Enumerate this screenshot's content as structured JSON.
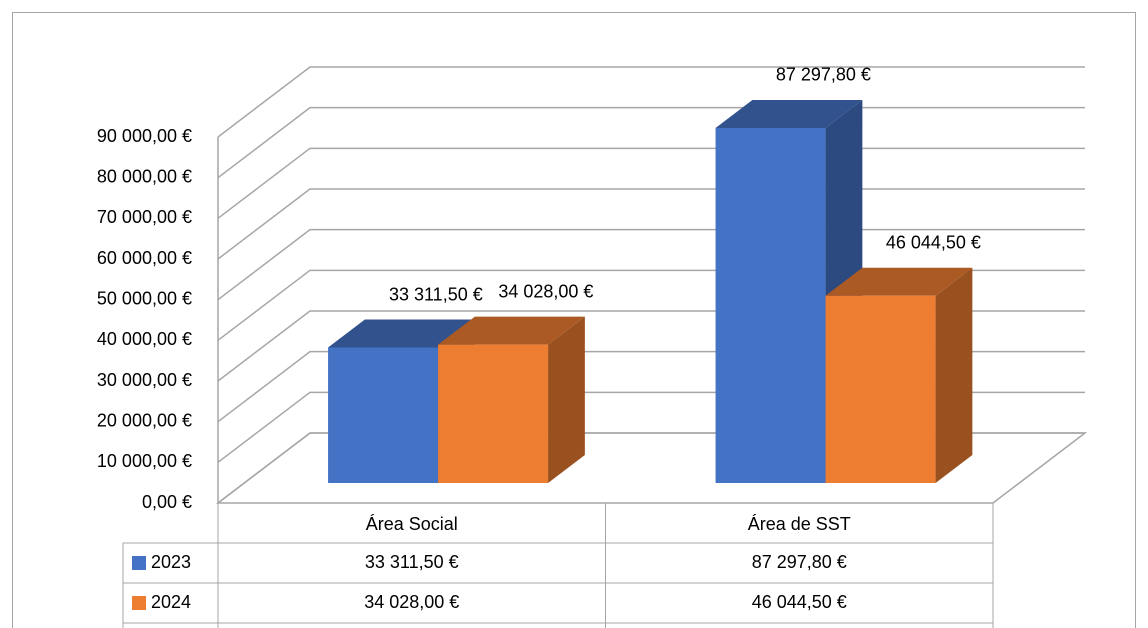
{
  "chart_data": {
    "type": "bar3d",
    "categories": [
      "Área Social",
      "Área de SST"
    ],
    "series": [
      {
        "name": "2023",
        "color": "#4472c4",
        "values": [
          33311.5,
          87297.8
        ],
        "value_labels": [
          "33 311,50 €",
          "87 297,80 €"
        ]
      },
      {
        "name": "2024",
        "color": "#ed7d31",
        "values": [
          34028,
          46044.5
        ],
        "value_labels": [
          "34 028,00 €",
          "46 044,50 €"
        ]
      }
    ],
    "ylim": [
      0,
      90000
    ],
    "yticks": [
      {
        "value": 0,
        "label": "0,00 €"
      },
      {
        "value": 10000,
        "label": "10 000,00 €"
      },
      {
        "value": 20000,
        "label": "20 000,00 €"
      },
      {
        "value": 30000,
        "label": "30 000,00 €"
      },
      {
        "value": 40000,
        "label": "40 000,00 €"
      },
      {
        "value": 50000,
        "label": "50 000,00 €"
      },
      {
        "value": 60000,
        "label": "60 000,00 €"
      },
      {
        "value": 70000,
        "label": "70 000,00 €"
      },
      {
        "value": 80000,
        "label": "80 000,00 €"
      },
      {
        "value": 90000,
        "label": "90 000,00 €"
      }
    ],
    "grid": true,
    "data_table": true
  }
}
